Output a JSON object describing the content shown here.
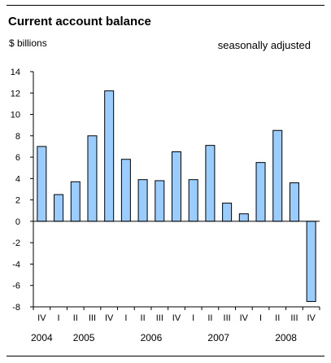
{
  "chart_data": {
    "type": "bar",
    "title": "Current account balance",
    "ylabel": "$ billions",
    "note": "seasonally adjusted",
    "ylim": [
      -8,
      14
    ],
    "yticks": [
      14,
      12,
      10,
      8,
      6,
      4,
      2,
      0,
      -2,
      -4,
      -6,
      -8
    ],
    "categories": [
      "IV",
      "I",
      "II",
      "III",
      "IV",
      "I",
      "II",
      "III",
      "IV",
      "I",
      "II",
      "III",
      "IV",
      "I",
      "II",
      "III",
      "IV"
    ],
    "values": [
      7.0,
      2.5,
      3.7,
      8.0,
      12.2,
      5.8,
      3.9,
      3.8,
      6.5,
      3.9,
      7.1,
      1.7,
      0.7,
      5.5,
      8.5,
      3.6,
      -7.5
    ],
    "years": [
      {
        "label": "2004",
        "first": 0,
        "last": 0
      },
      {
        "label": "2005",
        "first": 1,
        "last": 4
      },
      {
        "label": "2006",
        "first": 5,
        "last": 8
      },
      {
        "label": "2007",
        "first": 9,
        "last": 12
      },
      {
        "label": "2008",
        "first": 13,
        "last": 16
      }
    ],
    "bar_color": "#99ccff",
    "grid": false
  }
}
